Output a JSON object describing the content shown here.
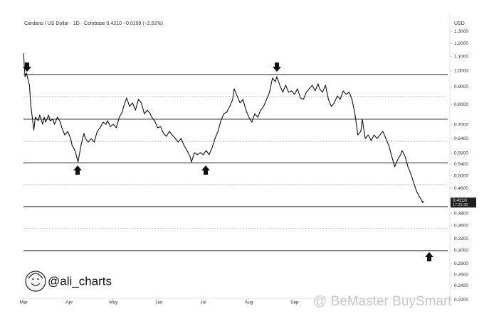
{
  "chart_data": {
    "type": "line",
    "title": "Cardano / US Dollar · 1D · Coinbase 0.4210 −0.0109 (−2.52%)",
    "y_label": "USD",
    "log_scale": true,
    "color": "#111111",
    "x": [
      0,
      1,
      2,
      4,
      5,
      7,
      8,
      10,
      11,
      13,
      14,
      15,
      17,
      18,
      20,
      21,
      23,
      25,
      26,
      28,
      30,
      32,
      33,
      35,
      37,
      39,
      41,
      42,
      44,
      46,
      48,
      50,
      52,
      54,
      56,
      57,
      59,
      61,
      63,
      65,
      67,
      68,
      70,
      72,
      74,
      76,
      78,
      80,
      82,
      84,
      86,
      87,
      89,
      91,
      93,
      95,
      97,
      99,
      101,
      103,
      105,
      107,
      109,
      111,
      113,
      114,
      116,
      118,
      120,
      122,
      124,
      126,
      128,
      130,
      132,
      134,
      136,
      138,
      140,
      142,
      143,
      145,
      147,
      149,
      151,
      153,
      155,
      157,
      159,
      161,
      163,
      165,
      167,
      169,
      171,
      172,
      174,
      176,
      178,
      180,
      182,
      184,
      186,
      188,
      190,
      192,
      194,
      196,
      198,
      200,
      201,
      203,
      205,
      207,
      209,
      211,
      213,
      215,
      217,
      219,
      221,
      223,
      225,
      227,
      229,
      230,
      232,
      234,
      236,
      238,
      240,
      242,
      244,
      246,
      248,
      250,
      252,
      254,
      256,
      257,
      259,
      261,
      263,
      265,
      267,
      269,
      271
    ],
    "values": [
      1.124,
      0.963,
      0.986,
      0.91,
      0.791,
      0.677,
      0.737,
      0.72,
      0.747,
      0.703,
      0.737,
      0.713,
      0.747,
      0.72,
      0.727,
      0.703,
      0.737,
      0.713,
      0.687,
      0.655,
      0.671,
      0.64,
      0.611,
      0.591,
      0.548,
      0.611,
      0.662,
      0.64,
      0.625,
      0.64,
      0.625,
      0.671,
      0.687,
      0.713,
      0.703,
      0.72,
      0.693,
      0.703,
      0.687,
      0.737,
      0.762,
      0.791,
      0.837,
      0.791,
      0.81,
      0.772,
      0.829,
      0.81,
      0.754,
      0.772,
      0.754,
      0.737,
      0.72,
      0.687,
      0.693,
      0.662,
      0.649,
      0.671,
      0.655,
      0.64,
      0.625,
      0.64,
      0.611,
      0.591,
      0.569,
      0.548,
      0.583,
      0.575,
      0.583,
      0.575,
      0.591,
      0.575,
      0.602,
      0.64,
      0.671,
      0.72,
      0.754,
      0.762,
      0.791,
      0.829,
      0.889,
      0.848,
      0.81,
      0.829,
      0.772,
      0.737,
      0.713,
      0.754,
      0.737,
      0.772,
      0.791,
      0.829,
      0.869,
      0.954,
      0.932,
      0.963,
      0.91,
      0.869,
      0.91,
      0.869,
      0.877,
      0.857,
      0.889,
      0.837,
      0.829,
      0.869,
      0.889,
      0.91,
      0.877,
      0.919,
      0.889,
      0.869,
      0.91,
      0.829,
      0.791,
      0.81,
      0.848,
      0.829,
      0.877,
      0.857,
      0.869,
      0.829,
      0.754,
      0.655,
      0.671,
      0.727,
      0.64,
      0.655,
      0.631,
      0.655,
      0.64,
      0.655,
      0.671,
      0.64,
      0.611,
      0.569,
      0.531,
      0.556,
      0.575,
      0.591,
      0.569,
      0.531,
      0.506,
      0.476,
      0.45,
      0.434,
      0.421
    ],
    "xlim": [
      -1,
      288
    ],
    "xticks": [
      {
        "value": 0,
        "label": "Mar"
      },
      {
        "value": 31,
        "label": "Apr"
      },
      {
        "value": 61,
        "label": "May"
      },
      {
        "value": 92,
        "label": "Jun"
      },
      {
        "value": 122,
        "label": "Jul"
      },
      {
        "value": 153,
        "label": "Aug"
      },
      {
        "value": 184,
        "label": "Sep"
      }
    ],
    "ylim": [
      0.2226,
      1.442
    ],
    "yticks": [
      {
        "value": 1.3,
        "label": "1.3000"
      },
      {
        "value": 1.2,
        "label": "1.2000"
      },
      {
        "value": 1.1,
        "label": "1.1000"
      },
      {
        "value": 1.0,
        "label": "1.0000"
      },
      {
        "value": 0.9,
        "label": "0.9000"
      },
      {
        "value": 0.8,
        "label": "0.8000"
      },
      {
        "value": 0.7,
        "label": "0.7000"
      },
      {
        "value": 0.64,
        "label": "0.6400"
      },
      {
        "value": 0.58,
        "label": "0.5800"
      },
      {
        "value": 0.54,
        "label": "0.5400"
      },
      {
        "value": 0.5,
        "label": "0.5000"
      },
      {
        "value": 0.46,
        "label": "0.4600"
      },
      {
        "value": 0.39,
        "label": "0.3900"
      },
      {
        "value": 0.36,
        "label": "0.3600"
      },
      {
        "value": 0.33,
        "label": "0.3300"
      },
      {
        "value": 0.305,
        "label": "0.3050"
      },
      {
        "value": 0.28,
        "label": "0.2800"
      },
      {
        "value": 0.26,
        "label": "0.2600"
      },
      {
        "value": 0.242,
        "label": "0.2420"
      },
      {
        "value": 0.22,
        "label": "0.2200"
      }
    ],
    "levels": [
      {
        "value": 0.977,
        "style": "solid"
      },
      {
        "value": 0.845,
        "style": "dotted"
      },
      {
        "value": 0.727,
        "style": "solid"
      },
      {
        "value": 0.628,
        "style": "dotted"
      },
      {
        "value": 0.545,
        "style": "solid"
      },
      {
        "value": 0.472,
        "style": "dotted"
      },
      {
        "value": 0.408,
        "style": "solid"
      },
      {
        "value": 0.353,
        "style": "dotted"
      },
      {
        "value": 0.305,
        "style": "solid"
      }
    ],
    "last_price": {
      "value": 0.421,
      "label": "0.4210",
      "countdown": "17:25:30"
    }
  },
  "watermarks": {
    "author": "@ali_charts",
    "platform": "@ BeMaster BuySmart"
  }
}
